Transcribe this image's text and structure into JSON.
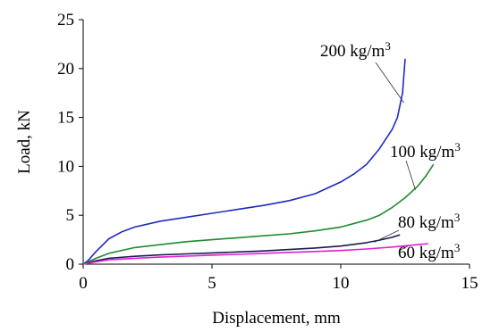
{
  "chart_data": {
    "type": "line",
    "xlabel": "Displacement, mm",
    "ylabel": "Load, kN",
    "xlim": [
      0,
      15
    ],
    "ylim": [
      0,
      25
    ],
    "x_ticks": [
      "0",
      "5",
      "10",
      "15"
    ],
    "y_ticks": [
      "0",
      "5",
      "10",
      "15",
      "20",
      "25"
    ],
    "grid": false,
    "series": [
      {
        "name": "200 kg/m³",
        "color": "#1f2bbf",
        "label_base": "200 kg/m",
        "label_sup": "3",
        "x": [
          0,
          0.2,
          0.5,
          1.0,
          1.5,
          2.0,
          3.0,
          4.0,
          5.0,
          6.0,
          7.0,
          8.0,
          9.0,
          10.0,
          10.5,
          11.0,
          11.5,
          12.0,
          12.2,
          12.4,
          12.5
        ],
        "y": [
          0,
          0.4,
          1.3,
          2.6,
          3.3,
          3.8,
          4.4,
          4.8,
          5.2,
          5.6,
          6.0,
          6.5,
          7.2,
          8.4,
          9.2,
          10.2,
          11.8,
          13.8,
          15.0,
          17.5,
          21.0
        ]
      },
      {
        "name": "100 kg/m³",
        "color": "#1e8b2e",
        "label_base": "100 kg/m",
        "label_sup": "3",
        "x": [
          0,
          0.5,
          1.0,
          2.0,
          3.0,
          4.0,
          5.0,
          6.0,
          7.0,
          8.0,
          9.0,
          10.0,
          11.0,
          11.5,
          12.0,
          12.5,
          13.0,
          13.3,
          13.6
        ],
        "y": [
          0,
          0.6,
          1.1,
          1.7,
          2.0,
          2.3,
          2.5,
          2.7,
          2.9,
          3.1,
          3.4,
          3.8,
          4.5,
          5.0,
          5.8,
          6.8,
          8.0,
          9.0,
          10.2
        ]
      },
      {
        "name": "80 kg/m³",
        "color": "#1a1a50",
        "label_base": "80 kg/m",
        "label_sup": "3",
        "x": [
          0,
          0.5,
          1.0,
          2.0,
          3.0,
          4.0,
          5.0,
          6.0,
          7.0,
          8.0,
          9.0,
          10.0,
          11.0,
          11.5,
          12.0,
          12.3
        ],
        "y": [
          0,
          0.35,
          0.6,
          0.8,
          0.95,
          1.05,
          1.15,
          1.25,
          1.35,
          1.5,
          1.65,
          1.85,
          2.2,
          2.45,
          2.75,
          3.0
        ]
      },
      {
        "name": "60 kg/m³",
        "color": "#e020d0",
        "label_base": "60 kg/m",
        "label_sup": "3",
        "x": [
          0,
          0.5,
          1.0,
          2.0,
          3.0,
          4.0,
          5.0,
          6.0,
          7.0,
          8.0,
          9.0,
          10.0,
          11.0,
          12.0,
          13.0,
          13.4
        ],
        "y": [
          0,
          0.25,
          0.45,
          0.6,
          0.72,
          0.82,
          0.92,
          1.0,
          1.1,
          1.2,
          1.3,
          1.4,
          1.55,
          1.75,
          2.0,
          2.1
        ]
      }
    ]
  }
}
